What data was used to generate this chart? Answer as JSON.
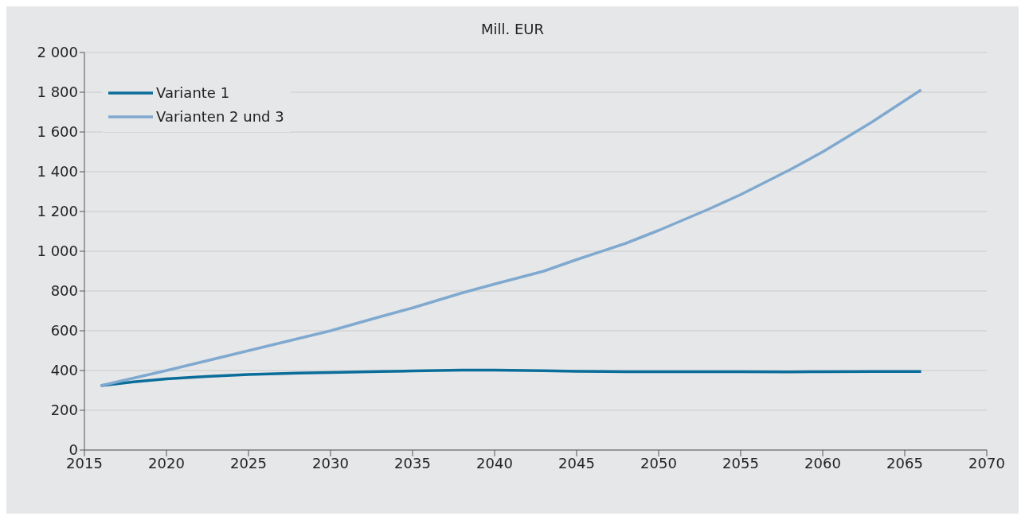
{
  "chart_data": {
    "type": "line",
    "title": "Mill. EUR",
    "x": [
      2016,
      2018,
      2020,
      2022,
      2025,
      2028,
      2030,
      2033,
      2035,
      2038,
      2040,
      2043,
      2045,
      2048,
      2050,
      2053,
      2055,
      2058,
      2060,
      2063,
      2066
    ],
    "series": [
      {
        "name": "Variante 1",
        "color": "#0a6d9a",
        "values": [
          324,
          343,
          358,
          368,
          380,
          387,
          390,
          395,
          398,
          402,
          402,
          399,
          396,
          394,
          394,
          394,
          394,
          393,
          394,
          395,
          395
        ]
      },
      {
        "name": "Varianten 2 und 3",
        "color": "#80a9d0",
        "values": [
          324,
          362,
          400,
          440,
          500,
          560,
          600,
          670,
          715,
          790,
          835,
          900,
          958,
          1040,
          1105,
          1210,
          1285,
          1410,
          1500,
          1650,
          1812
        ]
      }
    ],
    "xlim": [
      2015,
      2070
    ],
    "xticks": [
      2015,
      2020,
      2025,
      2030,
      2035,
      2040,
      2045,
      2050,
      2055,
      2060,
      2065,
      2070
    ],
    "ylim": [
      0,
      2000
    ],
    "yticks": [
      0,
      200,
      400,
      600,
      800,
      {
        "value": 1000,
        "label": "1 000"
      },
      {
        "value": 1200,
        "label": "1 200"
      },
      {
        "value": 1400,
        "label": "1 400"
      },
      {
        "value": 1600,
        "label": "1 600"
      },
      {
        "value": 1800,
        "label": "1 800"
      },
      {
        "value": 2000,
        "label": "2 000"
      }
    ],
    "grid": "y",
    "legend": "top left",
    "marker": "none",
    "line_style": "solid"
  }
}
